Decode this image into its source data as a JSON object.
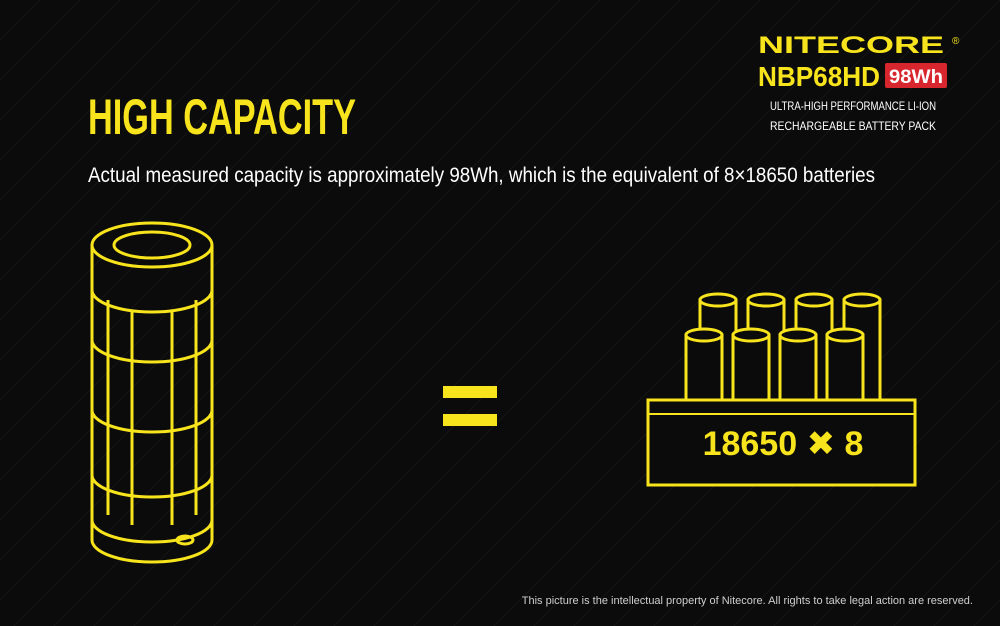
{
  "header": {
    "brand": "NITECORE",
    "registered": "®",
    "model": "NBP68HD",
    "capacity_badge": "98Wh",
    "description": [
      "ULTRA-HIGH PERFORMANCE LI-ION",
      "RECHARGEABLE BATTERY PACK"
    ]
  },
  "title": "HIGH CAPACITY",
  "subtitle": "Actual measured capacity is approximately 98Wh, which is the equivalent of 8×18650 batteries",
  "illustration": {
    "label": "18650 ✖ 8"
  },
  "footer": "This picture is the intellectual property of Nitecore. All rights to take legal action are reserved."
}
